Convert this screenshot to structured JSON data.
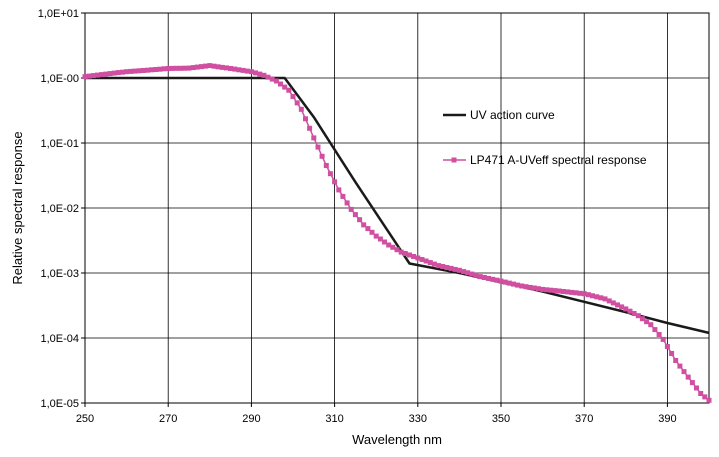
{
  "chart_data": {
    "type": "line",
    "xlabel": "Wavelength nm",
    "ylabel": "Relative spectral response",
    "xlim": [
      250,
      400
    ],
    "ylim": [
      1e-05,
      10
    ],
    "y_scale": "log",
    "grid": true,
    "legend_position": "right",
    "x_ticks": [
      250,
      270,
      290,
      310,
      330,
      350,
      370,
      390
    ],
    "x_tick_labels": [
      "250",
      "270",
      "290",
      "310",
      "330",
      "350",
      "370",
      "390"
    ],
    "y_ticks": [
      10,
      1,
      0.1,
      0.01,
      0.001,
      0.0001,
      1e-05
    ],
    "y_tick_labels": [
      "1,0E+01",
      "1,0E-00",
      "1,0E-01",
      "1,0E-02",
      "1,0E-03",
      "1,0E-04",
      "1,0E-05"
    ],
    "series": [
      {
        "name": "UV action curve",
        "color": "#1a1a1a",
        "marker": "none",
        "x": [
          250,
          298,
          305,
          315,
          328,
          340,
          350,
          360,
          370,
          380,
          390,
          400
        ],
        "y": [
          1.0,
          1.0,
          0.25,
          0.025,
          0.0014,
          0.001,
          0.00072,
          0.00052,
          0.00036,
          0.00025,
          0.00017,
          0.00012
        ]
      },
      {
        "name": "LP471 A-UVeff spectral response",
        "color": "#d04fa0",
        "marker": "square",
        "x": [
          250,
          255,
          260,
          265,
          270,
          275,
          280,
          285,
          290,
          293,
          296,
          299,
          302,
          305,
          308,
          311,
          314,
          317,
          320,
          323,
          326,
          330,
          335,
          340,
          345,
          350,
          355,
          360,
          365,
          370,
          375,
          380,
          383,
          386,
          389,
          392,
          395,
          398,
          400
        ],
        "y": [
          1.05,
          1.15,
          1.25,
          1.32,
          1.4,
          1.42,
          1.55,
          1.4,
          1.25,
          1.1,
          0.9,
          0.65,
          0.33,
          0.12,
          0.045,
          0.019,
          0.0095,
          0.0055,
          0.0037,
          0.0027,
          0.0021,
          0.0017,
          0.0013,
          0.0011,
          0.00088,
          0.00075,
          0.00063,
          0.00056,
          0.00052,
          0.00048,
          0.0004,
          0.00028,
          0.00022,
          0.00016,
          9.5e-05,
          4.5e-05,
          2.5e-05,
          1.4e-05,
          1.1e-05
        ]
      }
    ]
  }
}
